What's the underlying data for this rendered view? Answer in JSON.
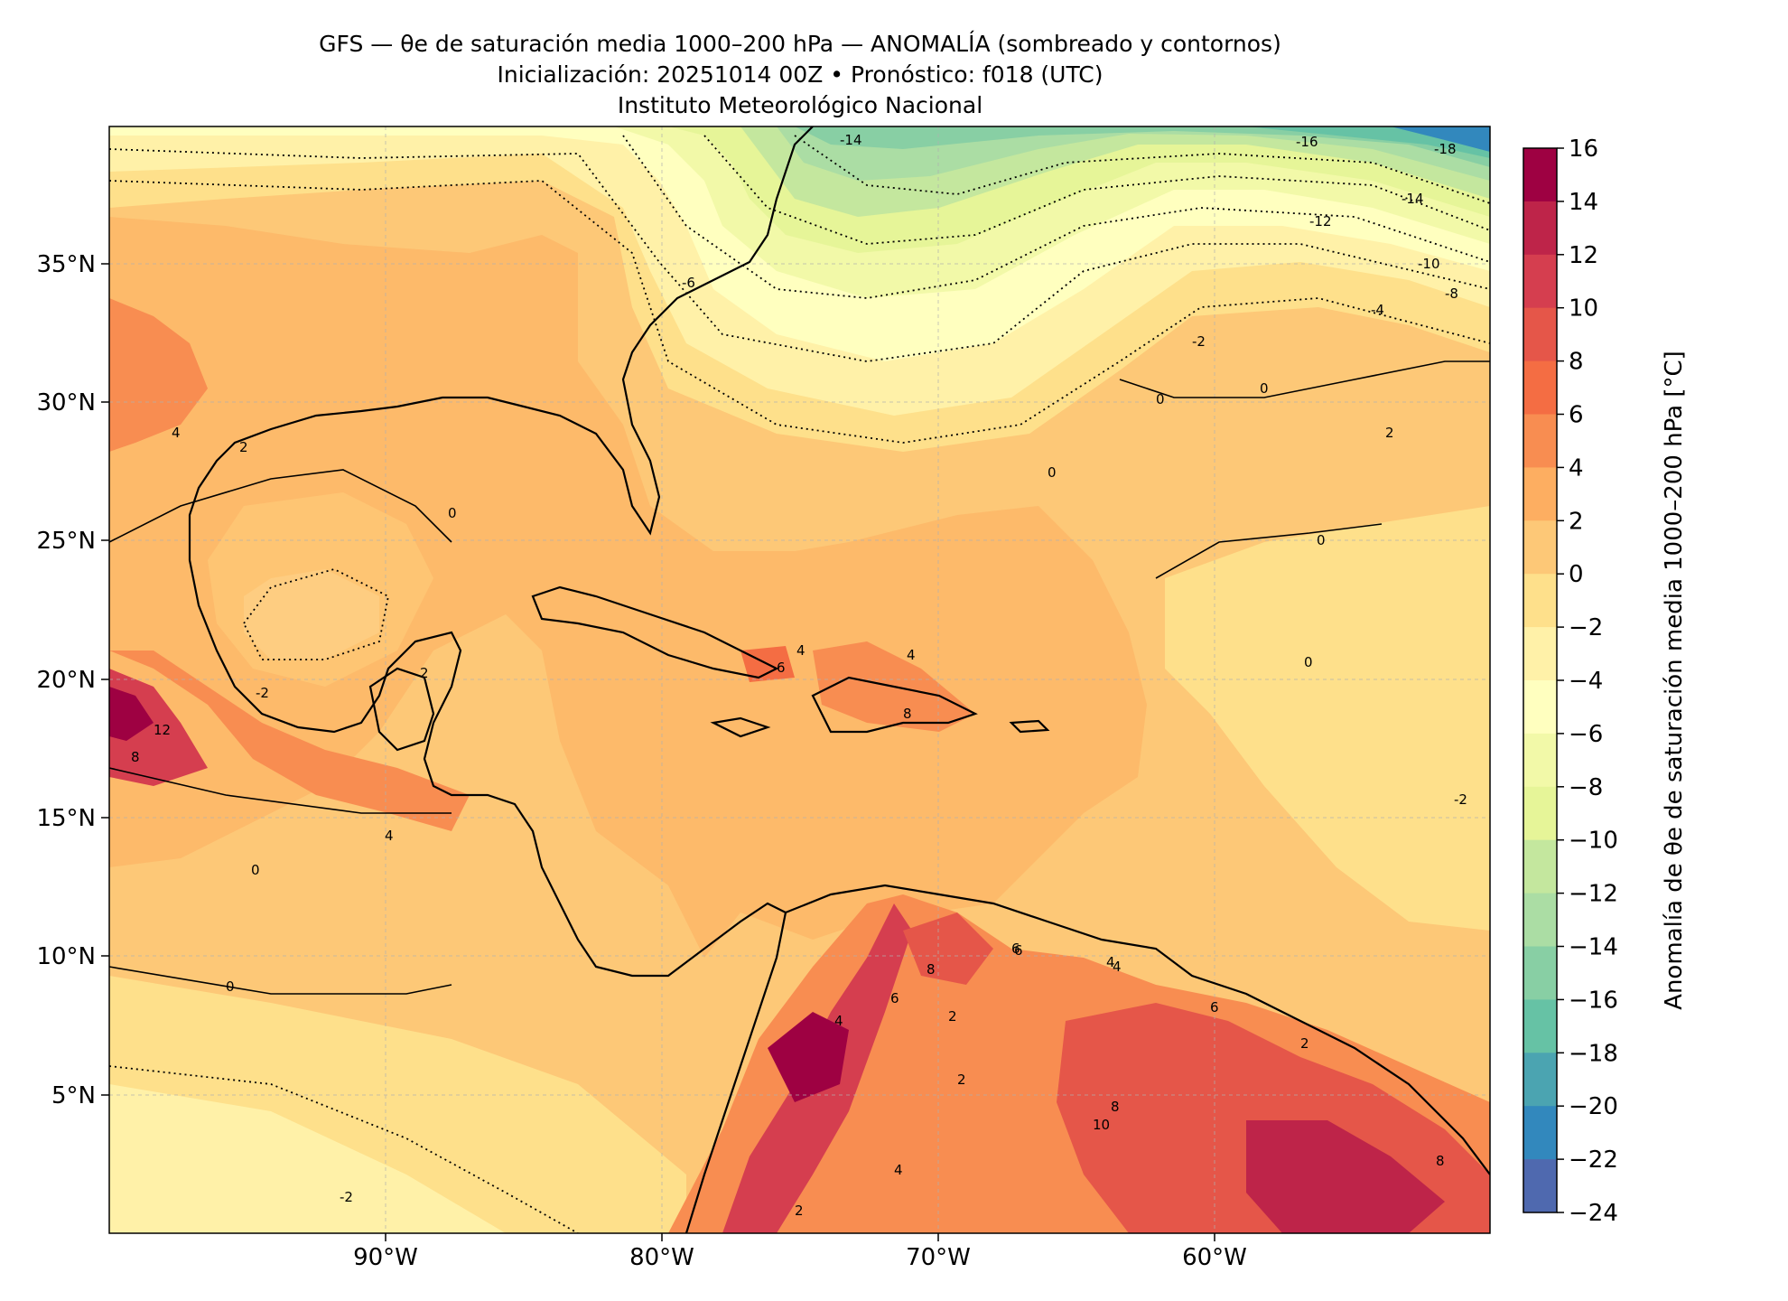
{
  "title": {
    "line1": "GFS — θe de saturación media 1000–200 hPa — ANOMALÍA (sombreado y contornos)",
    "line2": "Inicialización: 20251014 00Z   •   Pronóstico: f018 (UTC)",
    "line3": "Instituto Meteorológico Nacional"
  },
  "map": {
    "lon_ticks": [
      "90°W",
      "80°W",
      "70°W",
      "60°W"
    ],
    "lat_ticks": [
      "35°N",
      "30°N",
      "25°N",
      "20°N",
      "15°N",
      "10°N",
      "5°N"
    ],
    "contour_labels": [
      "-14",
      "-16",
      "-18",
      "-14",
      "-12",
      "-10",
      "-8",
      "-4",
      "-2",
      "-6",
      "0",
      "0",
      "0",
      "0",
      "2",
      "2",
      "4",
      "6",
      "4",
      "-2",
      "2",
      "0",
      "4",
      "6",
      "4",
      "8",
      "6",
      "4",
      "12",
      "8",
      "4",
      "0",
      "0",
      "0",
      "-2",
      "2",
      "6",
      "4",
      "8",
      "2",
      "2",
      "4",
      "6",
      "8",
      "10",
      "8",
      "2",
      "-2"
    ]
  },
  "colorbar": {
    "label": "Anomalía de θe de saturación media 1000–200 hPa [°C]",
    "ticks": [
      "16",
      "14",
      "12",
      "10",
      "8",
      "6",
      "4",
      "2",
      "0",
      "−2",
      "−4",
      "−6",
      "−8",
      "−10",
      "−12",
      "−14",
      "−16",
      "−18",
      "−20",
      "−22",
      "−24"
    ],
    "colors": [
      "#9e0142",
      "#be2449",
      "#d53e4f",
      "#e55649",
      "#f46d43",
      "#f88d51",
      "#fdae61",
      "#fdc877",
      "#fee08b",
      "#fff1a8",
      "#ffffbf",
      "#f2f9a8",
      "#e6f598",
      "#c4e79e",
      "#abdda4",
      "#88cfa4",
      "#66c2a5",
      "#4ba4b1",
      "#3288bd",
      "#4f69af",
      "#5e4fa2"
    ]
  }
}
